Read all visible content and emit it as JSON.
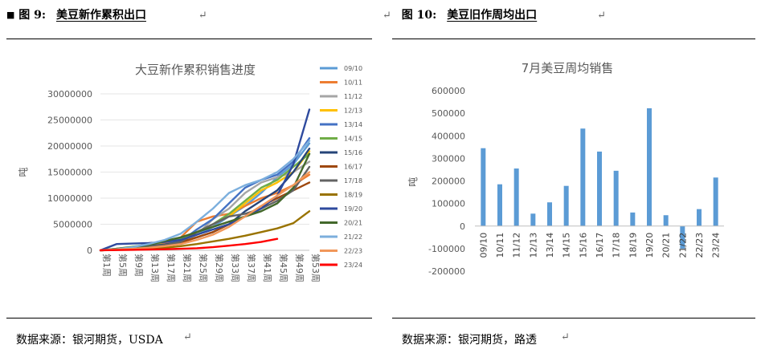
{
  "left": {
    "figure_num": "图 9:",
    "figure_title": "美豆新作累积出口",
    "source": "数据来源：银河期货，USDA"
  },
  "right": {
    "figure_num": "图 10:",
    "figure_title": "美豆旧作周均出口",
    "source": "数据来源：银河期货，路透"
  },
  "colors": {
    "bar": "#5b9bd5",
    "grid": "#e6e6e6",
    "axis_text": "#595959"
  },
  "chart_data": [
    {
      "type": "line",
      "title": "大豆新作累积销售进度",
      "xlabel": "",
      "ylabel": "吨",
      "ylim": [
        0,
        30000000
      ],
      "yticks": [
        "30000000",
        "25000000",
        "20000000",
        "15000000",
        "10000000",
        "5000000",
        "0"
      ],
      "x_ticks": [
        "第1周",
        "第5周",
        "第9周",
        "第13周",
        "第17周",
        "第21周",
        "第25周",
        "第29周",
        "第33周",
        "第37周",
        "第41周",
        "第45周",
        "第49周",
        "第53周"
      ],
      "legend_position": "right",
      "x": [
        1,
        5,
        9,
        13,
        17,
        21,
        25,
        29,
        33,
        37,
        41,
        45,
        49,
        53
      ],
      "series": [
        {
          "name": "09/10",
          "color": "#5b9bd5",
          "values": [
            0,
            200000,
            500000,
            800000,
            1200000,
            1800000,
            3000000,
            4500000,
            6500000,
            8500000,
            11000000,
            14000000,
            16500000,
            20500000
          ]
        },
        {
          "name": "10/11",
          "color": "#ed7d31",
          "values": [
            0,
            300000,
            600000,
            900000,
            1300000,
            2500000,
            5500000,
            6500000,
            7000000,
            8500000,
            10000000,
            11000000,
            12500000,
            14500000
          ]
        },
        {
          "name": "11/12",
          "color": "#a5a5a5",
          "values": [
            0,
            200000,
            400000,
            700000,
            1000000,
            1600000,
            3000000,
            6000000,
            8000000,
            11000000,
            13000000,
            14000000,
            15000000,
            17000000
          ]
        },
        {
          "name": "12/13",
          "color": "#ffc000",
          "values": [
            0,
            150000,
            400000,
            700000,
            1000000,
            1500000,
            3500000,
            5000000,
            6500000,
            9000000,
            11500000,
            13000000,
            15000000,
            19000000
          ]
        },
        {
          "name": "13/14",
          "color": "#4472c4",
          "values": [
            0,
            200000,
            500000,
            800000,
            1100000,
            1700000,
            4000000,
            6000000,
            9000000,
            12000000,
            13500000,
            14500000,
            17000000,
            21500000
          ]
        },
        {
          "name": "14/15",
          "color": "#70ad47",
          "values": [
            0,
            300000,
            700000,
            1100000,
            1600000,
            2200000,
            3500000,
            5000000,
            7000000,
            9500000,
            12000000,
            13500000,
            16000000,
            18500000
          ]
        },
        {
          "name": "15/16",
          "color": "#264478",
          "values": [
            0,
            200000,
            500000,
            800000,
            1100000,
            1600000,
            2500000,
            3500000,
            5000000,
            7500000,
            9500000,
            11500000,
            15000000,
            19500000
          ]
        },
        {
          "name": "16/17",
          "color": "#9e480e",
          "values": [
            0,
            150000,
            400000,
            700000,
            1000000,
            1500000,
            2500000,
            3500000,
            5000000,
            6500000,
            8500000,
            10000000,
            11500000,
            13000000
          ]
        },
        {
          "name": "17/18",
          "color": "#636363",
          "values": [
            0,
            200000,
            400000,
            700000,
            1000000,
            1600000,
            3500000,
            5000000,
            6500000,
            7000000,
            8000000,
            9500000,
            11500000,
            16000000
          ]
        },
        {
          "name": "18/19",
          "color": "#997300",
          "values": [
            0,
            100000,
            200000,
            300000,
            500000,
            800000,
            1200000,
            1700000,
            2200000,
            2800000,
            3500000,
            4200000,
            5200000,
            7500000
          ]
        },
        {
          "name": "19/20",
          "color": "#2e4a9e",
          "values": [
            0,
            1200000,
            1300000,
            1400000,
            1600000,
            2000000,
            3000000,
            4000000,
            5000000,
            6500000,
            8000000,
            10500000,
            16500000,
            27000000
          ]
        },
        {
          "name": "20/21",
          "color": "#43682b",
          "values": [
            0,
            300000,
            600000,
            1000000,
            1800000,
            2500000,
            3500000,
            4500000,
            5500000,
            6500000,
            7500000,
            9000000,
            12000000,
            18500000
          ]
        },
        {
          "name": "21/22",
          "color": "#7cafdd",
          "values": [
            0,
            200000,
            600000,
            1200000,
            2000000,
            3200000,
            5500000,
            8000000,
            11000000,
            12500000,
            13500000,
            15000000,
            17500000,
            21000000
          ]
        },
        {
          "name": "22/23",
          "color": "#f1975a",
          "values": [
            0,
            150000,
            300000,
            500000,
            800000,
            1200000,
            2000000,
            3000000,
            4500000,
            6500000,
            8500000,
            10500000,
            12500000,
            15000000
          ]
        },
        {
          "name": "23/24",
          "color": "#ff0000",
          "values": [
            0,
            50000,
            100000,
            150000,
            200000,
            300000,
            400000,
            600000,
            900000,
            1200000,
            1600000,
            2200000,
            null,
            null
          ]
        }
      ]
    },
    {
      "type": "bar",
      "title": "7月美豆周均销售",
      "xlabel": "",
      "ylabel": "吨",
      "ylim": [
        -200000,
        600000
      ],
      "yticks": [
        "600000",
        "500000",
        "400000",
        "300000",
        "200000",
        "100000",
        "0",
        "-100000",
        "-200000"
      ],
      "grid": false,
      "categories": [
        "09/10",
        "10/11",
        "11/12",
        "12/13",
        "13/14",
        "14/15",
        "15/16",
        "16/17",
        "17/18",
        "18/19",
        "19/20",
        "20/21",
        "21/22",
        "22/23",
        "23/24"
      ],
      "values": [
        345000,
        185000,
        255000,
        55000,
        105000,
        178000,
        432000,
        330000,
        245000,
        60000,
        522000,
        48000,
        -100000,
        75000,
        215000
      ]
    }
  ]
}
